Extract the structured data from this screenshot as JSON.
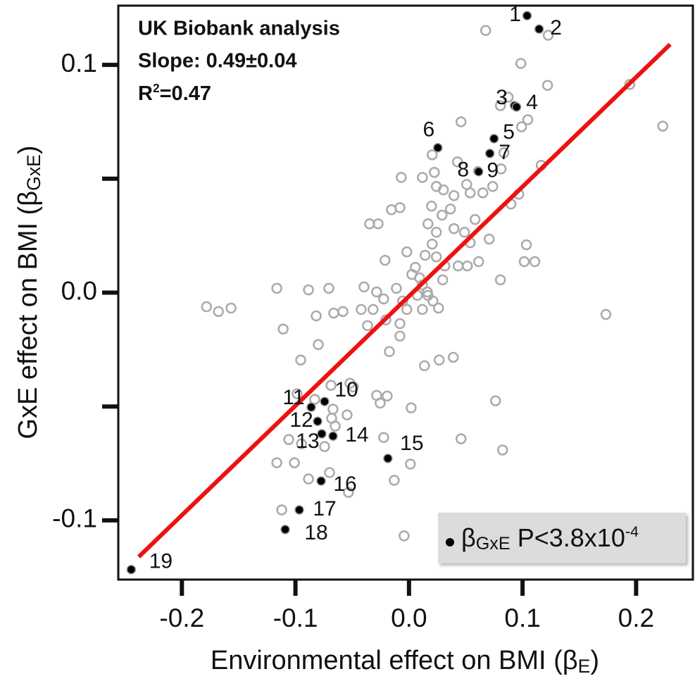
{
  "chart_data": {
    "type": "scatter",
    "annotations": [
      "UK Biobank analysis",
      "Slope: 0.49±0.04",
      [
        "R",
        "2",
        "=0.47"
      ]
    ],
    "x_label": [
      "Environmental effect on BMI (β",
      "E",
      ")"
    ],
    "y_label": [
      "GxE effect on BMI (β",
      "GxE",
      ")"
    ],
    "xlim": [
      -0.256,
      0.25
    ],
    "ylim": [
      -0.126,
      0.126
    ],
    "xticks": [
      -0.2,
      -0.1,
      {
        "value": 0,
        "label": "0.0"
      },
      0.1,
      0.2
    ],
    "yticks": [
      -0.1,
      {
        "value": 0,
        "label": "0.0"
      },
      0.1
    ],
    "yminor_ticks": [
      -0.05,
      0.05
    ],
    "grid": false,
    "legend_position": "lower right",
    "fit_line": {
      "color": "#ee1111",
      "x": [
        -0.238,
        0.23
      ],
      "y": [
        -0.116,
        0.109
      ]
    },
    "series": [
      {
        "color": "#aaaaaa",
        "filled": false,
        "x": [
          0.0675,
          0.1226,
          0.0985,
          0.122,
          0.1944,
          0.2235,
          0.0873,
          0.0805,
          0.1046,
          0.0991,
          0.0458,
          0.0836,
          0.0811,
          0.1164,
          0.0204,
          0.0427,
          0.0223,
          0.0118,
          -0.0068,
          0.0241,
          0.0303,
          0.0396,
          0.0508,
          0.065,
          0.0539,
          0.0737,
          0.0966,
          0.0898,
          -0.0155,
          -0.008,
          -0.0347,
          -0.0272,
          0.0198,
          0.0365,
          0.0291,
          0.0167,
          0.0241,
          0.0396,
          0.0489,
          0.0582,
          0.0706,
          0.0539,
          0.0204,
          -0.0019,
          0.0142,
          -0.0211,
          0.0056,
          0.0025,
          0.0241,
          0.0316,
          0.0433,
          0.0514,
          0.0613,
          0.1034,
          0.1015,
          0.0805,
          0.1108,
          -0.1164,
          -0.0885,
          -0.0706,
          -0.0396,
          -0.0285,
          0.0118,
          -0.0111,
          0.0167,
          0.0211,
          0.0074,
          0.026,
          0.0118,
          -0.0056,
          -0.0223,
          -0.0316,
          -0.0421,
          -0.0204,
          -0.008,
          -0.008,
          -0.0019,
          -0.1783,
          -0.1678,
          -0.1567,
          -0.0817,
          -0.0663,
          -0.0582,
          -0.1108,
          -0.0799,
          -0.0365,
          -0.0173,
          -0.0954,
          0.0136,
          0.0266,
          0.039,
          -0.052,
          -0.0489,
          -0.0687,
          -0.0985,
          -0.083,
          -0.0285,
          -0.0192,
          -0.0254,
          0.0019,
          0.0762,
          -0.0669,
          -0.0681,
          -0.0545,
          -0.065,
          -0.0223,
          0.0458,
          -0.1059,
          -0.0947,
          -0.0743,
          -0.1164,
          -0.1009,
          0.0012,
          0.0824,
          -0.07,
          -0.0885,
          -0.013,
          -0.0533,
          -0.1121,
          -0.0043,
          0.1734,
          0.0161,
          0.0093,
          0.0297
        ],
        "values": [
          0.1151,
          0.113,
          0.1006,
          0.091,
          0.0914,
          0.0731,
          0.0858,
          0.0821,
          0.0759,
          0.0728,
          0.075,
          0.0614,
          0.0543,
          0.0559,
          0.0605,
          0.0574,
          0.0528,
          0.0506,
          0.0506,
          0.0466,
          0.0451,
          0.0426,
          0.0475,
          0.0438,
          0.0438,
          0.0466,
          0.0432,
          0.0389,
          0.0364,
          0.0373,
          0.0302,
          0.0302,
          0.038,
          0.0367,
          0.034,
          0.0302,
          0.0265,
          0.0281,
          0.0265,
          0.0321,
          0.0235,
          0.0219,
          0.0213,
          0.0179,
          0.0164,
          0.0142,
          0.0111,
          0.008,
          0.0157,
          0.0117,
          0.0117,
          0.0117,
          0.0136,
          0.021,
          0.0136,
          0.0056,
          0.0136,
          0.0019,
          0.0012,
          0.0019,
          0.0025,
          0.0003,
          0.0034,
          0.0019,
          -0.0012,
          -0.0037,
          -0.0012,
          -0.0068,
          -0.0074,
          -0.0037,
          -0.0028,
          -0.0074,
          -0.0074,
          -0.012,
          -0.0136,
          -0.0191,
          -0.0074,
          -0.0062,
          -0.0083,
          -0.0068,
          -0.0102,
          -0.009,
          -0.0083,
          -0.016,
          -0.0228,
          -0.0145,
          -0.0259,
          -0.0296,
          -0.0321,
          -0.0296,
          -0.0284,
          -0.0398,
          -0.0414,
          -0.0407,
          -0.0444,
          -0.0469,
          -0.0451,
          -0.0454,
          -0.0485,
          -0.0506,
          -0.0475,
          -0.0512,
          -0.0552,
          -0.0537,
          -0.0586,
          -0.0636,
          -0.0642,
          -0.0645,
          -0.0664,
          -0.0676,
          -0.0747,
          -0.0747,
          -0.0753,
          -0.0691,
          -0.079,
          -0.0818,
          -0.0824,
          -0.0877,
          -0.0954,
          -0.1068,
          -0.0096,
          0.0003,
          0.0065,
          0.0056
        ]
      },
      {
        "name": [
          "β",
          "GxE",
          " P<3.8x10",
          "-4"
        ],
        "color": "#000000",
        "filled": true,
        "x": [
          0.104,
          0.1146,
          0.0929,
          0.0947,
          0.0749,
          0.0254,
          0.0712,
          0.0607,
          0.0613,
          -0.0743,
          -0.0861,
          -0.0805,
          -0.0768,
          -0.0669,
          -0.0186,
          -0.0774,
          -0.0966,
          -0.109,
          -0.2446
        ],
        "values": [
          0.1216,
          0.1157,
          0.0821,
          0.0815,
          0.0676,
          0.0636,
          0.0611,
          0.0534,
          0.0531,
          -0.0478,
          -0.0503,
          -0.0565,
          -0.062,
          -0.063,
          -0.0728,
          -0.0827,
          -0.0954,
          -0.104,
          -0.1216
        ],
        "point_labels": [
          "1",
          "2",
          "3",
          "4",
          "5",
          "6",
          "7",
          "8",
          "9",
          "10",
          "11",
          "12",
          "13",
          "14",
          "15",
          "16",
          "17",
          "18",
          "19"
        ]
      }
    ]
  }
}
